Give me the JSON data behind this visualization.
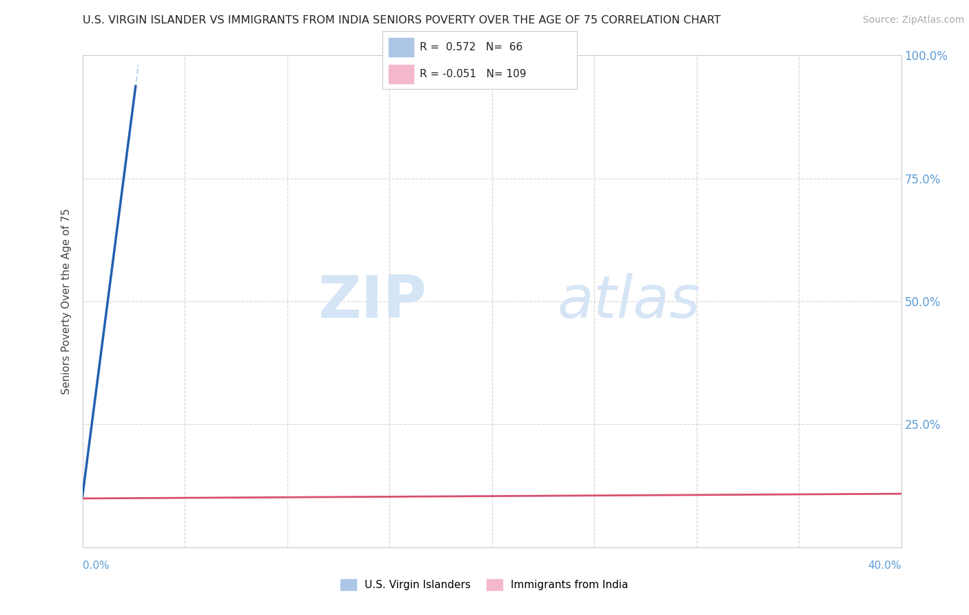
{
  "title": "U.S. VIRGIN ISLANDER VS IMMIGRANTS FROM INDIA SENIORS POVERTY OVER THE AGE OF 75 CORRELATION CHART",
  "source": "Source: ZipAtlas.com",
  "ylabel": "Seniors Poverty Over the Age of 75",
  "r_vi": 0.572,
  "n_vi": 66,
  "r_india": -0.051,
  "n_india": 109,
  "vi_color": "#adc6e8",
  "india_color": "#f5b8cb",
  "vi_line_color": "#2060b0",
  "india_line_color": "#d94f6e",
  "legend_label_vi": "U.S. Virgin Islanders",
  "legend_label_india": "Immigrants from India",
  "background_color": "#ffffff",
  "grid_color": "#bbbbbb",
  "title_color": "#222222",
  "axis_label_color": "#5b9bd5",
  "source_color": "#aaaaaa",
  "xlim": [
    0.0,
    0.4
  ],
  "ylim": [
    0.0,
    1.0
  ],
  "watermark_zip": "ZIP",
  "watermark_atlas": "atlas",
  "watermark_color": "#d5e5f5"
}
